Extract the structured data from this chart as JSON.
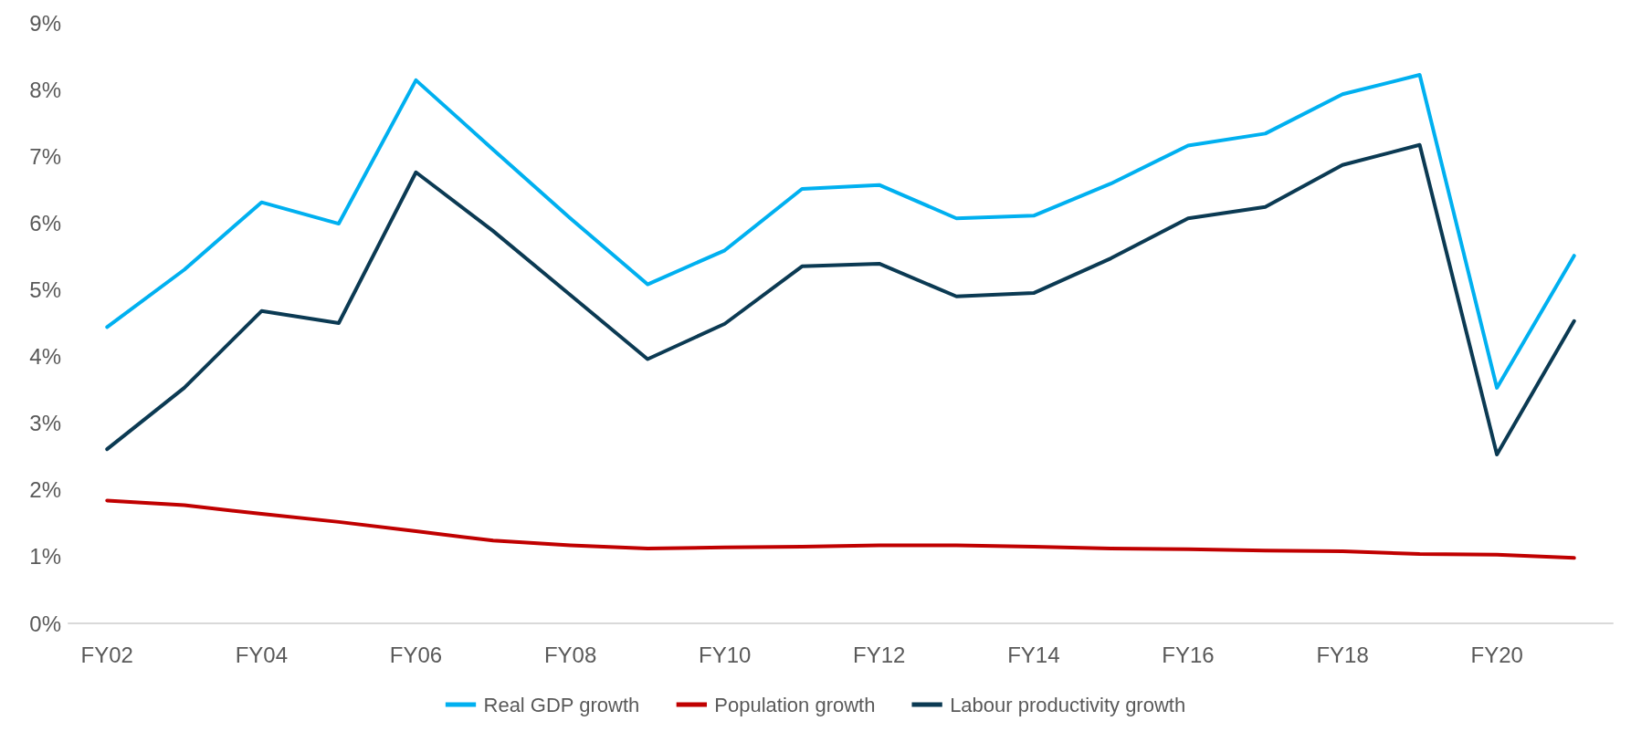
{
  "chart_data": {
    "type": "line",
    "categories": [
      "FY02",
      null,
      "FY04",
      null,
      "FY06",
      null,
      "FY08",
      null,
      "FY10",
      null,
      "FY12",
      null,
      "FY14",
      null,
      "FY16",
      null,
      "FY18",
      null,
      "FY20",
      null
    ],
    "series": [
      {
        "name": "Real GDP growth",
        "color": "#00b0f0",
        "values": [
          4.44,
          5.3,
          6.31,
          5.99,
          8.14,
          7.1,
          6.07,
          5.08,
          5.59,
          6.51,
          6.57,
          6.07,
          6.11,
          6.59,
          7.16,
          7.34,
          7.93,
          8.22,
          3.53,
          5.51
        ]
      },
      {
        "name": "Population growth",
        "color": "#c00000",
        "values": [
          1.84,
          1.77,
          1.64,
          1.52,
          1.38,
          1.24,
          1.17,
          1.12,
          1.14,
          1.15,
          1.17,
          1.17,
          1.15,
          1.12,
          1.11,
          1.09,
          1.08,
          1.04,
          1.03,
          0.98
        ]
      },
      {
        "name": "Labour productivity growth",
        "color": "#0b3a53",
        "values": [
          2.61,
          3.53,
          4.68,
          4.5,
          6.76,
          5.88,
          4.92,
          3.96,
          4.49,
          5.35,
          5.39,
          4.9,
          4.95,
          5.47,
          6.07,
          6.24,
          6.87,
          7.17,
          2.53,
          4.53
        ]
      }
    ],
    "ylim": [
      0,
      9
    ],
    "yticks": [
      {
        "value": 0,
        "label": "0%"
      },
      {
        "value": 1,
        "label": "1%"
      },
      {
        "value": 2,
        "label": "2%"
      },
      {
        "value": 3,
        "label": "3%"
      },
      {
        "value": 4,
        "label": "4%"
      },
      {
        "value": 5,
        "label": "5%"
      },
      {
        "value": 6,
        "label": "6%"
      },
      {
        "value": 7,
        "label": "7%"
      },
      {
        "value": 8,
        "label": "8%"
      },
      {
        "value": 9,
        "label": "9%"
      }
    ],
    "grid": false,
    "legend": "bottom",
    "marker": "none",
    "line_style": "solid"
  }
}
